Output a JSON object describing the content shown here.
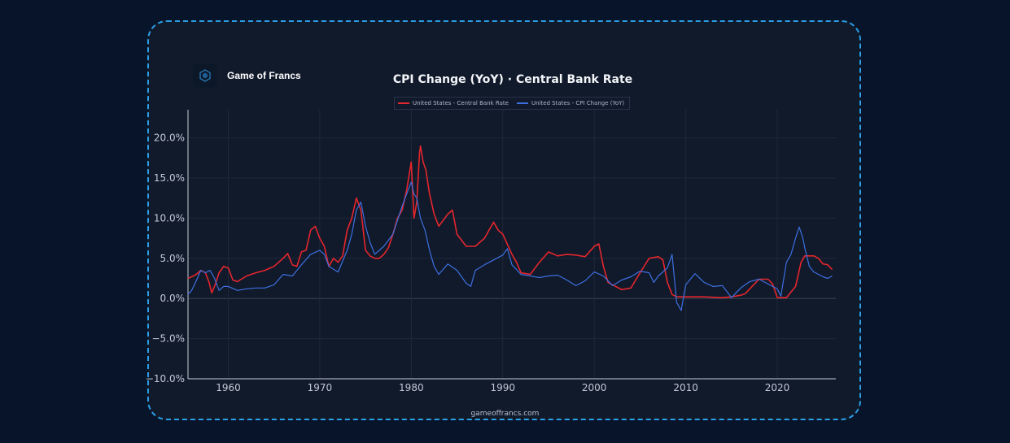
{
  "brand": {
    "name": "Game of Francs",
    "logo_icon": "hexagon-logo-icon"
  },
  "footer": {
    "url": "gameoffrancs.com"
  },
  "colors": {
    "central_bank": "#e4262d",
    "cpi": "#3d6fe0",
    "background": "#111a2b",
    "page": "#08142a",
    "border": "#2a9fe6"
  },
  "chart_data": {
    "type": "line",
    "title": "CPI Change (YoY) · Central Bank Rate",
    "xlabel": "",
    "ylabel": "",
    "xlim": [
      1955.6,
      2026.4
    ],
    "ylim": [
      -10,
      23.5
    ],
    "x_ticks": [
      1960,
      1970,
      1980,
      1990,
      2000,
      2010,
      2020
    ],
    "x_tick_labels": [
      "1960",
      "1970",
      "1980",
      "1990",
      "2000",
      "2010",
      "2020"
    ],
    "y_ticks": [
      -10,
      -5,
      0,
      5,
      10,
      15,
      20
    ],
    "y_tick_labels": [
      "−10.0%",
      "−5.0%",
      "0.0%",
      "5.0%",
      "10.0%",
      "15.0%",
      "20.0%"
    ],
    "grid": true,
    "legend_position": "top-center",
    "series": [
      {
        "name": "United States - Central Bank Rate",
        "color": "#e4262d",
        "x": [
          1955.6,
          1956,
          1956.5,
          1957,
          1957.5,
          1957.9,
          1958.2,
          1958.6,
          1959,
          1959.5,
          1960,
          1960.5,
          1961,
          1962,
          1963,
          1964,
          1965,
          1966,
          1966.5,
          1967,
          1967.5,
          1968,
          1968.5,
          1969,
          1969.5,
          1970,
          1970.5,
          1971,
          1971.5,
          1972,
          1972.5,
          1973,
          1973.5,
          1974,
          1974.5,
          1975,
          1975.5,
          1976,
          1976.5,
          1977,
          1977.5,
          1978,
          1978.5,
          1979,
          1979.5,
          1980,
          1980.3,
          1980.6,
          1980.9,
          1981,
          1981.3,
          1981.6,
          1982,
          1982.5,
          1983,
          1984,
          1984.5,
          1985,
          1986,
          1987,
          1988,
          1989,
          1989.5,
          1990,
          1991,
          1991.5,
          1992,
          1993,
          1994,
          1995,
          1996,
          1997,
          1998,
          1999,
          2000,
          2000.5,
          2001,
          2001.5,
          2002,
          2003,
          2004,
          2005,
          2006,
          2007,
          2007.5,
          2008,
          2008.5,
          2009,
          2010,
          2012,
          2014,
          2015,
          2016,
          2016.5,
          2017,
          2018,
          2019,
          2019.5,
          2020,
          2020.2,
          2021,
          2022,
          2022.3,
          2022.6,
          2023,
          2023.5,
          2024,
          2024.5,
          2025,
          2025.5,
          2026
        ],
        "values": [
          2.5,
          2.7,
          3.0,
          3.5,
          3.2,
          2.0,
          0.7,
          1.8,
          3.2,
          4.0,
          3.8,
          2.3,
          2.1,
          2.8,
          3.2,
          3.5,
          4.0,
          5.0,
          5.6,
          4.2,
          4.0,
          5.8,
          6.0,
          8.5,
          9.0,
          7.5,
          6.5,
          4.0,
          5.0,
          4.5,
          5.3,
          8.5,
          10.0,
          12.5,
          11.0,
          6.0,
          5.3,
          5.0,
          5.0,
          5.5,
          6.3,
          8.0,
          10.0,
          11.0,
          13.5,
          17.0,
          10.0,
          12.0,
          18.0,
          19.0,
          17.0,
          16.0,
          13.0,
          10.5,
          9.0,
          10.5,
          11.0,
          8.0,
          6.5,
          6.5,
          7.5,
          9.5,
          8.5,
          8.0,
          5.5,
          4.5,
          3.2,
          3.0,
          4.5,
          5.8,
          5.3,
          5.5,
          5.4,
          5.2,
          6.5,
          6.8,
          4.0,
          2.0,
          1.7,
          1.1,
          1.3,
          3.2,
          5.0,
          5.2,
          4.8,
          2.0,
          0.5,
          0.2,
          0.2,
          0.2,
          0.1,
          0.2,
          0.4,
          0.6,
          1.2,
          2.4,
          2.4,
          1.8,
          0.1,
          0.1,
          0.1,
          1.5,
          3.0,
          4.5,
          5.3,
          5.3,
          5.3,
          5.0,
          4.3,
          4.2,
          3.6
        ]
      },
      {
        "name": "United States - CPI Change (YoY)",
        "color": "#3d6fe0",
        "x": [
          1955.6,
          1956,
          1956.5,
          1957,
          1957.5,
          1958,
          1958.5,
          1959,
          1959.5,
          1960,
          1961,
          1962,
          1963,
          1964,
          1965,
          1966,
          1967,
          1968,
          1969,
          1970,
          1970.5,
          1971,
          1972,
          1973,
          1973.5,
          1974,
          1974.5,
          1975,
          1975.5,
          1976,
          1977,
          1978,
          1979,
          1979.5,
          1980,
          1980.3,
          1980.6,
          1981,
          1981.5,
          1982,
          1982.5,
          1983,
          1984,
          1985,
          1986,
          1986.5,
          1987,
          1988,
          1989,
          1990,
          1990.5,
          1991,
          1992,
          1993,
          1994,
          1995,
          1996,
          1997,
          1998,
          1999,
          2000,
          2001,
          2002,
          2003,
          2004,
          2005,
          2006,
          2006.5,
          2007,
          2008,
          2008.5,
          2009,
          2009.5,
          2010,
          2011,
          2012,
          2013,
          2014,
          2015,
          2016,
          2017,
          2018,
          2019,
          2020,
          2020.4,
          2021,
          2021.5,
          2022,
          2022.4,
          2022.8,
          2023,
          2023.5,
          2024,
          2025,
          2025.5,
          2026
        ],
        "values": [
          0.5,
          1.0,
          2.2,
          3.5,
          3.2,
          3.5,
          2.5,
          1.0,
          1.5,
          1.5,
          1.0,
          1.2,
          1.3,
          1.3,
          1.7,
          3.0,
          2.8,
          4.2,
          5.5,
          6.0,
          5.5,
          4.0,
          3.3,
          6.0,
          8.0,
          11.0,
          12.0,
          9.0,
          7.0,
          5.5,
          6.5,
          8.0,
          11.5,
          13.0,
          14.5,
          13.0,
          12.5,
          10.0,
          8.5,
          6.0,
          4.0,
          3.0,
          4.3,
          3.5,
          1.9,
          1.5,
          3.5,
          4.2,
          4.8,
          5.4,
          6.2,
          4.2,
          3.0,
          2.8,
          2.6,
          2.8,
          2.9,
          2.3,
          1.6,
          2.2,
          3.3,
          2.8,
          1.6,
          2.3,
          2.7,
          3.4,
          3.2,
          2.0,
          2.8,
          3.8,
          5.5,
          -0.5,
          -1.5,
          1.7,
          3.1,
          2.0,
          1.5,
          1.6,
          0.1,
          1.3,
          2.1,
          2.4,
          1.8,
          1.2,
          0.3,
          4.5,
          5.5,
          7.5,
          8.9,
          7.5,
          6.3,
          4.0,
          3.3,
          2.7,
          2.5,
          2.8
        ]
      }
    ]
  }
}
